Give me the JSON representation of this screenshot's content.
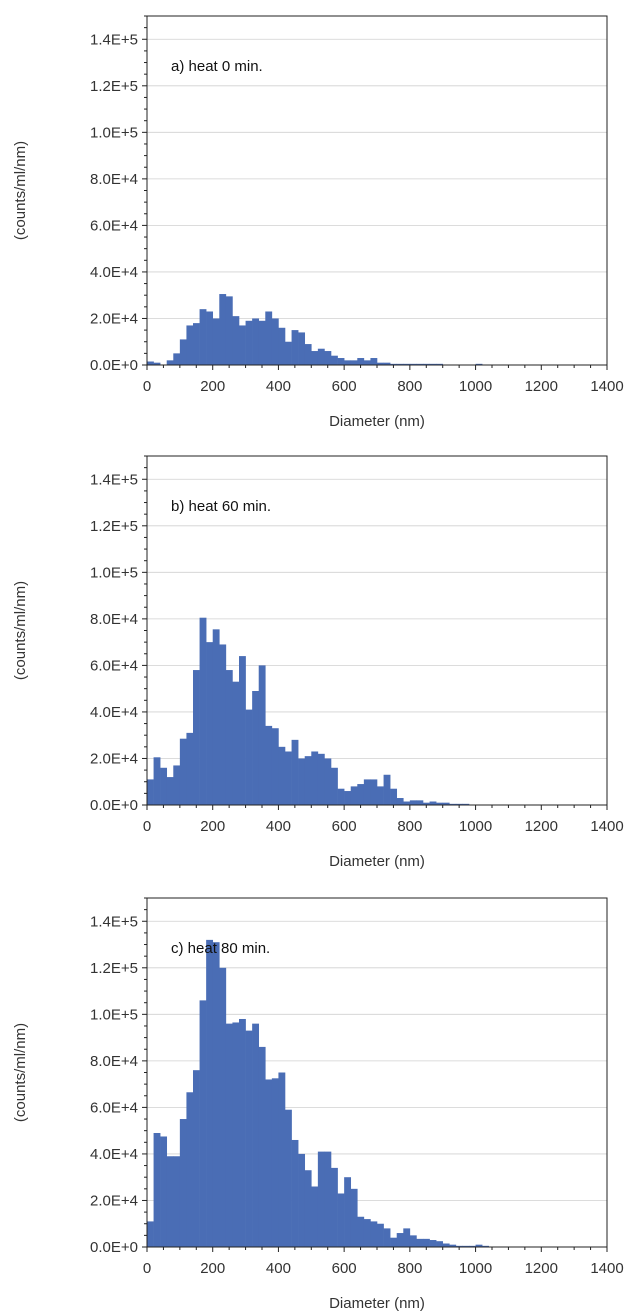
{
  "chart_data": [
    {
      "type": "bar",
      "title": "a) heat 0 min.",
      "xlabel": "Diameter (nm)",
      "ylabel": "(counts/ml/nm)",
      "xlim": [
        0,
        1400
      ],
      "ylim": [
        0,
        150000
      ],
      "bin_width": 20,
      "xticks": [
        "0",
        "200",
        "400",
        "600",
        "800",
        "1000",
        "1200",
        "1400"
      ],
      "yticks": [
        "0.0E+0",
        "2.0E+4",
        "4.0E+4",
        "6.0E+4",
        "8.0E+4",
        "1.0E+5",
        "1.2E+5",
        "1.4E+5"
      ],
      "grid": "horizontal",
      "color": "#4a6db5",
      "x": [
        10,
        30,
        50,
        70,
        90,
        110,
        130,
        150,
        170,
        190,
        210,
        230,
        250,
        270,
        290,
        310,
        330,
        350,
        370,
        390,
        410,
        430,
        450,
        470,
        490,
        510,
        530,
        550,
        570,
        590,
        610,
        630,
        650,
        670,
        690,
        710,
        730,
        750,
        770,
        790,
        810,
        830,
        850,
        870,
        890,
        910,
        930,
        950,
        970,
        990,
        1010,
        1030,
        1050,
        1070,
        1090,
        1110,
        1130,
        1150,
        1170,
        1190,
        1210,
        1230,
        1250,
        1270,
        1290,
        1310,
        1330,
        1350,
        1370,
        1390
      ],
      "values": [
        1500,
        1000,
        0,
        2000,
        5000,
        11000,
        17000,
        18000,
        24000,
        23000,
        20000,
        30500,
        29500,
        21000,
        17000,
        19000,
        20000,
        19000,
        23000,
        20000,
        16000,
        10000,
        15000,
        14000,
        9000,
        6000,
        7000,
        6000,
        4000,
        3000,
        2000,
        2000,
        3000,
        2000,
        3000,
        1000,
        1000,
        500,
        500,
        500,
        500,
        500,
        500,
        500,
        500,
        0,
        0,
        0,
        0,
        0,
        500,
        0,
        0,
        0,
        0,
        0,
        0,
        0,
        0,
        0,
        0,
        0,
        0,
        0,
        0,
        0,
        0,
        0,
        0,
        0
      ]
    },
    {
      "type": "bar",
      "title": "b) heat 60 min.",
      "xlabel": "Diameter (nm)",
      "ylabel": "(counts/ml/nm)",
      "xlim": [
        0,
        1400
      ],
      "ylim": [
        0,
        150000
      ],
      "bin_width": 20,
      "xticks": [
        "0",
        "200",
        "400",
        "600",
        "800",
        "1000",
        "1200",
        "1400"
      ],
      "yticks": [
        "0.0E+0",
        "2.0E+4",
        "4.0E+4",
        "6.0E+4",
        "8.0E+4",
        "1.0E+5",
        "1.2E+5",
        "1.4E+5"
      ],
      "grid": "horizontal",
      "color": "#4a6db5",
      "x": [
        10,
        30,
        50,
        70,
        90,
        110,
        130,
        150,
        170,
        190,
        210,
        230,
        250,
        270,
        290,
        310,
        330,
        350,
        370,
        390,
        410,
        430,
        450,
        470,
        490,
        510,
        530,
        550,
        570,
        590,
        610,
        630,
        650,
        670,
        690,
        710,
        730,
        750,
        770,
        790,
        810,
        830,
        850,
        870,
        890,
        910,
        930,
        950,
        970,
        990,
        1010,
        1030,
        1050,
        1070,
        1090,
        1110,
        1130,
        1150,
        1170,
        1190,
        1210,
        1230,
        1250,
        1270,
        1290,
        1310,
        1330,
        1350,
        1370,
        1390
      ],
      "values": [
        11000,
        20500,
        16000,
        12000,
        17000,
        28500,
        31000,
        58000,
        80500,
        70000,
        75500,
        69000,
        58000,
        53000,
        64000,
        41000,
        49000,
        60000,
        34000,
        33000,
        25000,
        23000,
        28000,
        20000,
        21000,
        23000,
        22000,
        20000,
        16000,
        7000,
        6000,
        8000,
        9000,
        11000,
        11000,
        8000,
        13000,
        7000,
        3000,
        1500,
        2000,
        2000,
        1000,
        1500,
        1000,
        1000,
        500,
        500,
        500,
        0,
        0,
        0,
        0,
        0,
        0,
        0,
        0,
        0,
        0,
        0,
        0,
        0,
        0,
        0,
        0,
        0,
        0,
        0,
        0,
        0
      ]
    },
    {
      "type": "bar",
      "title": "c) heat 80 min.",
      "xlabel": "Diameter (nm)",
      "ylabel": "(counts/ml/nm)",
      "xlim": [
        0,
        1400
      ],
      "ylim": [
        0,
        150000
      ],
      "bin_width": 20,
      "xticks": [
        "0",
        "200",
        "400",
        "600",
        "800",
        "1000",
        "1200",
        "1400"
      ],
      "yticks": [
        "0.0E+0",
        "2.0E+4",
        "4.0E+4",
        "6.0E+4",
        "8.0E+4",
        "1.0E+5",
        "1.2E+5",
        "1.4E+5"
      ],
      "grid": "horizontal",
      "color": "#4a6db5",
      "x": [
        10,
        30,
        50,
        70,
        90,
        110,
        130,
        150,
        170,
        190,
        210,
        230,
        250,
        270,
        290,
        310,
        330,
        350,
        370,
        390,
        410,
        430,
        450,
        470,
        490,
        510,
        530,
        550,
        570,
        590,
        610,
        630,
        650,
        670,
        690,
        710,
        730,
        750,
        770,
        790,
        810,
        830,
        850,
        870,
        890,
        910,
        930,
        950,
        970,
        990,
        1010,
        1030,
        1050,
        1070,
        1090,
        1110,
        1130,
        1150,
        1170,
        1190,
        1210,
        1230,
        1250,
        1270,
        1290,
        1310,
        1330,
        1350,
        1370,
        1390
      ],
      "values": [
        11000,
        49000,
        47500,
        39000,
        39000,
        55000,
        66500,
        76000,
        106000,
        132000,
        131000,
        120000,
        96000,
        96500,
        98000,
        93000,
        96000,
        86000,
        72000,
        72500,
        75000,
        59000,
        46000,
        40000,
        33000,
        26000,
        41000,
        41000,
        34000,
        23000,
        30000,
        25000,
        13000,
        12000,
        11000,
        10000,
        8000,
        4000,
        6000,
        8000,
        5000,
        3500,
        3500,
        3000,
        2500,
        1500,
        1000,
        500,
        500,
        500,
        1000,
        500,
        0,
        0,
        0,
        0,
        0,
        0,
        0,
        0,
        0,
        0,
        0,
        0,
        0,
        0,
        0,
        0,
        0,
        0
      ]
    }
  ]
}
